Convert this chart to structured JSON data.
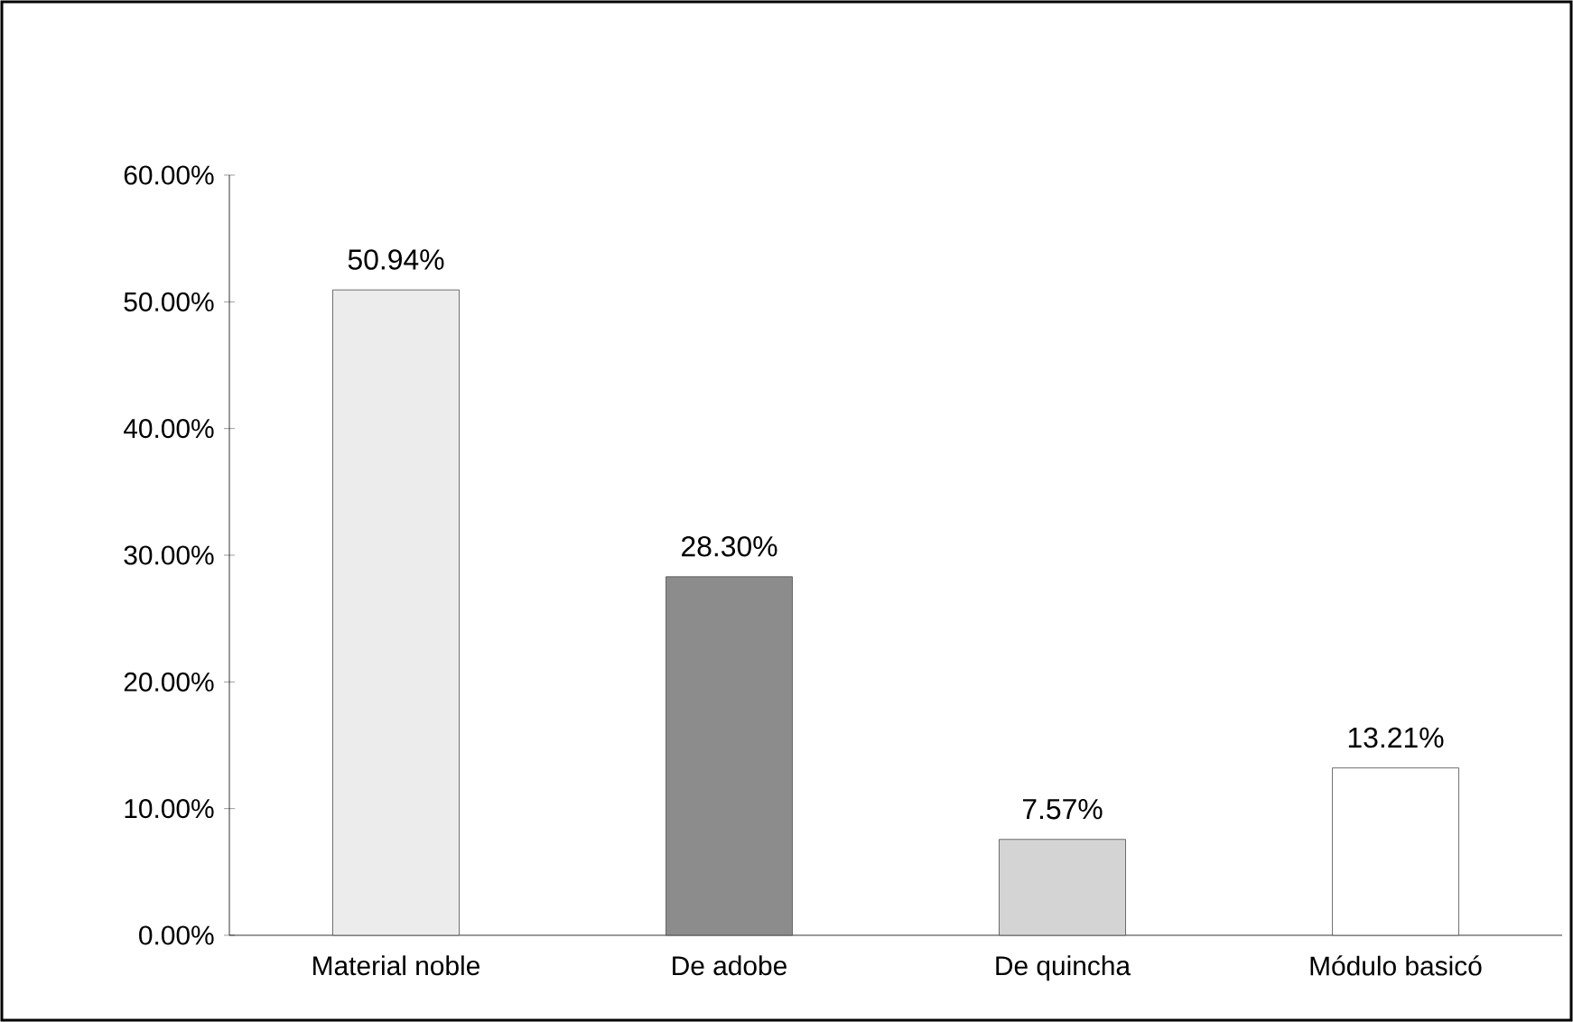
{
  "chart_data": {
    "type": "bar",
    "categories": [
      "Material noble",
      "De adobe",
      "De quincha",
      "Módulo basicó"
    ],
    "values": [
      50.94,
      28.3,
      7.57,
      13.21
    ],
    "colors": [
      "#ececec",
      "#8c8c8c",
      "#d4d4d4",
      "#ffffff"
    ],
    "value_labels": [
      "50.94%",
      "28.30%",
      "7.57%",
      "13.21%"
    ],
    "ylim": [
      0,
      60
    ],
    "yticks": [
      {
        "value": 0,
        "label": "0.00%"
      },
      {
        "value": 10,
        "label": "10.00%"
      },
      {
        "value": 20,
        "label": "20.00%"
      },
      {
        "value": 30,
        "label": "30.00%"
      },
      {
        "value": 40,
        "label": "40.00%"
      },
      {
        "value": 50,
        "label": "50.00%"
      },
      {
        "value": 60,
        "label": "60.00%"
      }
    ]
  }
}
